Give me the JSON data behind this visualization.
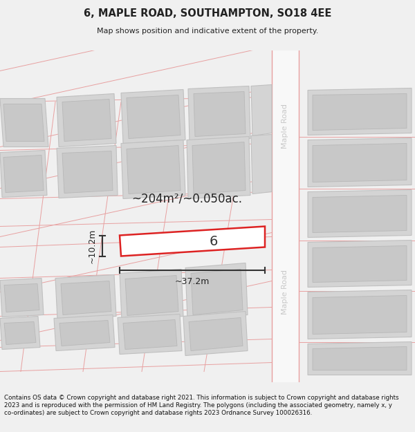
{
  "title_line1": "6, MAPLE ROAD, SOUTHAMPTON, SO18 4EE",
  "title_line2": "Map shows position and indicative extent of the property.",
  "footer_text": "Contains OS data © Crown copyright and database right 2021. This information is subject to Crown copyright and database rights 2023 and is reproduced with the permission of HM Land Registry. The polygons (including the associated geometry, namely x, y co-ordinates) are subject to Crown copyright and database rights 2023 Ordnance Survey 100026316.",
  "area_label": "~204m²/~0.050ac.",
  "number_label": "6",
  "dim_width": "~37.2m",
  "dim_height": "~10.2m",
  "road_label": "Maple Road",
  "bg_color": "#f0f0f0",
  "map_bg": "#ffffff",
  "building_fill": "#d4d4d4",
  "building_outline": "#c0c0c0",
  "highlight_outline": "#dd2222",
  "road_line_color": "#e8a0a0",
  "road_fill": "#f5f5f5",
  "dim_color": "#222222",
  "text_color": "#222222",
  "road_label_color": "#c8c8c8"
}
